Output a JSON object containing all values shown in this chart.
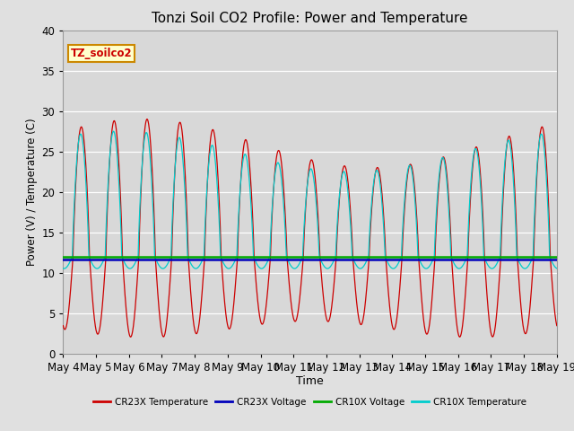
{
  "title": "Tonzi Soil CO2 Profile: Power and Temperature",
  "xlabel": "Time",
  "ylabel": "Power (V) / Temperature (C)",
  "ylim": [
    0,
    40
  ],
  "cr23x_voltage": 11.6,
  "cr10x_voltage": 11.95,
  "bg_color": "#e0e0e0",
  "plot_bg_color": "#d8d8d8",
  "cr23x_temp_color": "#cc0000",
  "cr23x_voltage_color": "#0000bb",
  "cr10x_voltage_color": "#00aa00",
  "cr10x_temp_color": "#00cccc",
  "legend_label_cr23x_temp": "CR23X Temperature",
  "legend_label_cr23x_volt": "CR23X Voltage",
  "legend_label_cr10x_volt": "CR10X Voltage",
  "legend_label_cr10x_temp": "CR10X Temperature",
  "annotation_text": "TZ_soilco2",
  "annotation_color": "#cc0000",
  "annotation_bg": "#ffffcc",
  "annotation_border": "#cc8800",
  "tick_labels": [
    "May 4",
    "May 5",
    "May 6",
    "May 7",
    "May 8",
    "May 9",
    "May 10",
    "May 11",
    "May 12",
    "May 13",
    "May 14",
    "May 15",
    "May 16",
    "May 17",
    "May 18",
    "May 19"
  ]
}
